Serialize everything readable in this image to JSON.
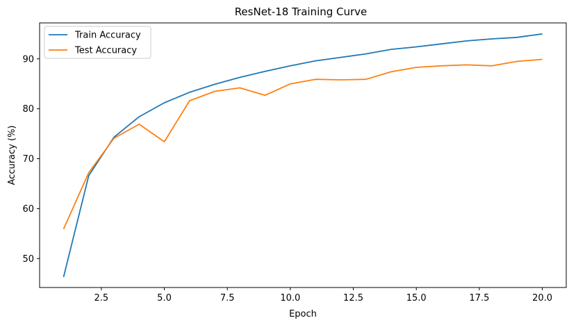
{
  "chart_data": {
    "type": "line",
    "title": "ResNet-18 Training Curve",
    "xlabel": "Epoch",
    "ylabel": "Accuracy (%)",
    "xlim": [
      0.05,
      20.95
    ],
    "ylim": [
      44.2,
      97.2
    ],
    "xticks": [
      2.5,
      5.0,
      7.5,
      10.0,
      12.5,
      15.0,
      17.5,
      20.0
    ],
    "xtick_labels": [
      "2.5",
      "5.0",
      "7.5",
      "10.0",
      "12.5",
      "15.0",
      "17.5",
      "20.0"
    ],
    "yticks": [
      50,
      60,
      70,
      80,
      90
    ],
    "ytick_labels": [
      "50",
      "60",
      "70",
      "80",
      "90"
    ],
    "grid": false,
    "legend_position": "top-left",
    "x": [
      1,
      2,
      3,
      4,
      5,
      6,
      7,
      8,
      9,
      10,
      11,
      12,
      13,
      14,
      15,
      16,
      17,
      18,
      19,
      20
    ],
    "series": [
      {
        "name": "Train Accuracy",
        "color": "#1f77b4",
        "values": [
          46.3,
          66.6,
          74.3,
          78.4,
          81.2,
          83.3,
          84.9,
          86.3,
          87.5,
          88.6,
          89.6,
          90.3,
          91.0,
          91.9,
          92.4,
          93.0,
          93.6,
          94.0,
          94.3,
          95.0
        ]
      },
      {
        "name": "Test Accuracy",
        "color": "#ff7f0e",
        "values": [
          55.9,
          67.2,
          74.1,
          76.9,
          73.4,
          81.6,
          83.5,
          84.2,
          82.7,
          85.0,
          85.9,
          85.8,
          85.9,
          87.4,
          88.3,
          88.6,
          88.8,
          88.6,
          89.5,
          89.9
        ]
      }
    ]
  }
}
